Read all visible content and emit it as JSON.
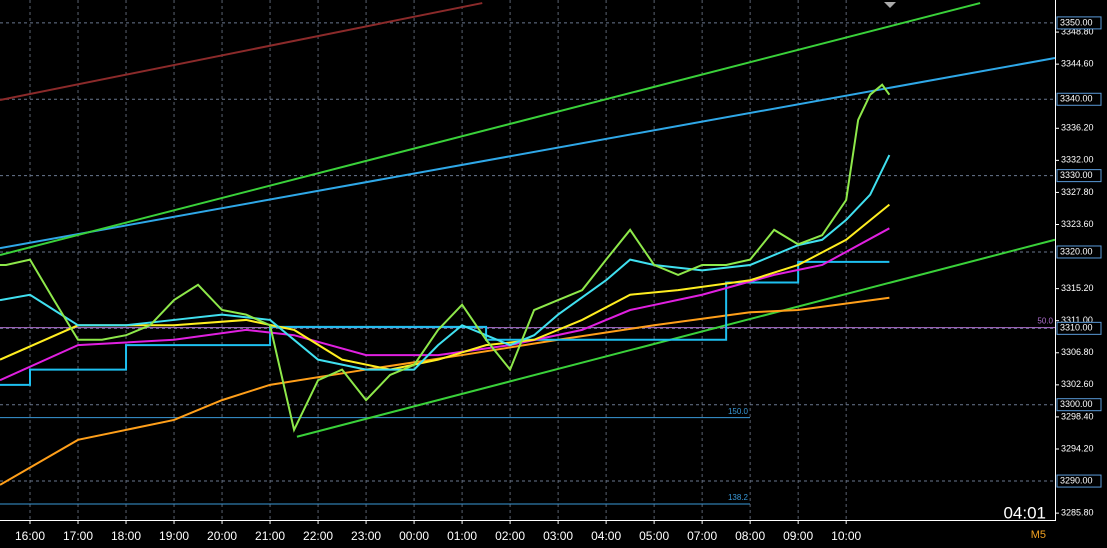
{
  "chart_data": {
    "type": "line",
    "xlim": [
      -0.625,
      21.35
    ],
    "ylim": [
      3284.9,
      3353.0
    ],
    "xticks": [
      {
        "value": 0,
        "label": "16:00"
      },
      {
        "value": 1,
        "label": "17:00"
      },
      {
        "value": 2,
        "label": "18:00"
      },
      {
        "value": 3,
        "label": "19:00"
      },
      {
        "value": 4,
        "label": "20:00"
      },
      {
        "value": 5,
        "label": "21:00"
      },
      {
        "value": 6,
        "label": "22:00"
      },
      {
        "value": 7,
        "label": "23:00"
      },
      {
        "value": 8,
        "label": "00:00"
      },
      {
        "value": 9,
        "label": "01:00"
      },
      {
        "value": 10,
        "label": "02:00"
      },
      {
        "value": 11,
        "label": "03:00"
      },
      {
        "value": 12,
        "label": "04:00"
      },
      {
        "value": 13,
        "label": "05:00"
      },
      {
        "value": 14,
        "label": "07:00"
      },
      {
        "value": 15,
        "label": "08:00"
      },
      {
        "value": 16,
        "label": "09:00"
      },
      {
        "value": 17,
        "label": "10:00"
      }
    ],
    "yticks": [
      {
        "value": 3348.8,
        "label": "3348.80"
      },
      {
        "value": 3344.6,
        "label": "3344.60"
      },
      {
        "value": 3336.2,
        "label": "3336.20"
      },
      {
        "value": 3332.0,
        "label": "3332.00"
      },
      {
        "value": 3327.8,
        "label": "3327.80"
      },
      {
        "value": 3323.6,
        "label": "3323.60"
      },
      {
        "value": 3315.2,
        "label": "3315.20"
      },
      {
        "value": 3311.0,
        "label": "3311.00"
      },
      {
        "value": 3306.8,
        "label": "3306.80"
      },
      {
        "value": 3302.6,
        "label": "3302.60"
      },
      {
        "value": 3298.4,
        "label": "3298.40"
      },
      {
        "value": 3294.2,
        "label": "3294.20"
      },
      {
        "value": 3285.8,
        "label": "3285.80"
      }
    ],
    "levels": [
      {
        "value": 3350,
        "label": "3350.00"
      },
      {
        "value": 3340,
        "label": "3340.00"
      },
      {
        "value": 3330,
        "label": "3330.00"
      },
      {
        "value": 3320,
        "label": "3320.00"
      },
      {
        "value": 3310,
        "label": "3310.00"
      },
      {
        "value": 3300,
        "label": "3300.00"
      },
      {
        "value": 3290,
        "label": "3290.00"
      }
    ],
    "fib_levels": [
      {
        "label": "150.0",
        "value": 3298.3,
        "color": "#3a9ad9"
      },
      {
        "label": "138.2",
        "value": 3287.0,
        "color": "#3a9ad9"
      },
      {
        "label": "50.0",
        "value": 3310.1,
        "color": "#b070d0"
      }
    ],
    "grid": true,
    "series": [
      {
        "color": "#8b2a2a",
        "x": [
          -0.625,
          9.42
        ],
        "values": [
          3339.9,
          3352.6
        ]
      },
      {
        "color": "#2fa8e8",
        "x": [
          -0.625,
          21.35
        ],
        "values": [
          3320.5,
          3345.4
        ]
      },
      {
        "color": "#3ad13a",
        "x": [
          -0.625,
          19.79
        ],
        "values": [
          3319.6,
          3352.6
        ]
      },
      {
        "color": "#3ad13a",
        "x": [
          5.56,
          21.35
        ],
        "values": [
          3295.8,
          3321.6
        ]
      },
      {
        "color": "#ff9f1a",
        "x": [
          -0.625,
          1,
          3,
          4,
          5,
          7,
          9,
          11,
          13,
          15,
          16,
          17.9
        ],
        "values": [
          3289.5,
          3295.4,
          3298.0,
          3300.6,
          3302.6,
          3304.6,
          3306.5,
          3308.5,
          3310.4,
          3312.1,
          3312.4,
          3314.0
        ]
      },
      {
        "color": "#1ec0f0",
        "x": [
          -0.625,
          0,
          0,
          2,
          2,
          5,
          5,
          9.5,
          9.5,
          14.5,
          14.5,
          16,
          16,
          17.9
        ],
        "values": [
          3302.6,
          3302.6,
          3304.6,
          3304.6,
          3307.8,
          3307.8,
          3310.2,
          3310.2,
          3308.5,
          3308.5,
          3316.0,
          3316.0,
          3318.7,
          3318.7
        ]
      },
      {
        "color": "#e020e0",
        "x": [
          -0.625,
          1,
          3,
          4.5,
          5.5,
          7,
          8.5,
          10,
          11.5,
          12.5,
          14,
          15.5,
          16.5,
          17.9
        ],
        "values": [
          3303.2,
          3307.8,
          3308.5,
          3309.8,
          3309.1,
          3306.5,
          3306.5,
          3307.8,
          3309.8,
          3312.4,
          3314.4,
          3317.0,
          3318.3,
          3323.1
        ]
      },
      {
        "color": "#ffee20",
        "x": [
          -0.625,
          1,
          3,
          4.5,
          5.5,
          6.5,
          7.5,
          8.5,
          9.5,
          10.5,
          11.5,
          12.5,
          13.5,
          15,
          16,
          17,
          17.9
        ],
        "values": [
          3305.9,
          3310.4,
          3310.4,
          3311.1,
          3309.8,
          3305.9,
          3304.6,
          3305.9,
          3307.8,
          3308.5,
          3311.1,
          3314.4,
          3315.0,
          3316.3,
          3318.3,
          3321.6,
          3326.2
        ]
      },
      {
        "color": "#40e0f0",
        "x": [
          -0.625,
          0,
          0.5,
          1,
          2,
          3,
          4,
          5,
          5.5,
          6,
          7,
          8,
          8.5,
          9,
          9.5,
          10,
          10.5,
          11,
          12,
          12.5,
          13,
          14,
          15,
          16,
          16.5,
          17,
          17.5,
          17.9
        ],
        "values": [
          3313.7,
          3314.4,
          3312.4,
          3310.4,
          3310.4,
          3311.1,
          3311.8,
          3311.1,
          3308.5,
          3305.9,
          3304.6,
          3304.6,
          3307.8,
          3310.4,
          3309.1,
          3307.8,
          3309.1,
          3311.8,
          3316.3,
          3319.0,
          3318.3,
          3317.6,
          3318.3,
          3320.9,
          3321.6,
          3324.2,
          3327.5,
          3332.7
        ]
      },
      {
        "color": "#8ee84a",
        "x": [
          -0.625,
          -0.5,
          0,
          0.5,
          1,
          1.5,
          2,
          2.5,
          3,
          3.5,
          4,
          4.5,
          5,
          5.5,
          6,
          6.5,
          7,
          7.5,
          8,
          8.5,
          9,
          9.5,
          10,
          10.5,
          11,
          11.5,
          12,
          12.5,
          13,
          13.5,
          14,
          14.5,
          15,
          15.5,
          16,
          16.5,
          17,
          17.25,
          17.5,
          17.75,
          17.9
        ],
        "values": [
          3318.3,
          3318.3,
          3319.0,
          3313.7,
          3308.5,
          3308.5,
          3309.1,
          3310.4,
          3313.7,
          3315.7,
          3312.4,
          3311.8,
          3310.4,
          3296.7,
          3303.2,
          3304.6,
          3300.6,
          3303.9,
          3305.2,
          3309.8,
          3313.1,
          3308.5,
          3304.6,
          3312.4,
          3313.7,
          3315.0,
          3319.0,
          3322.9,
          3318.3,
          3317.0,
          3318.3,
          3318.3,
          3319.0,
          3322.9,
          3321.0,
          3322.2,
          3326.8,
          3337.3,
          3340.6,
          3341.9,
          3340.6
        ]
      }
    ],
    "timer": "04:01",
    "timeframe": "M5"
  }
}
